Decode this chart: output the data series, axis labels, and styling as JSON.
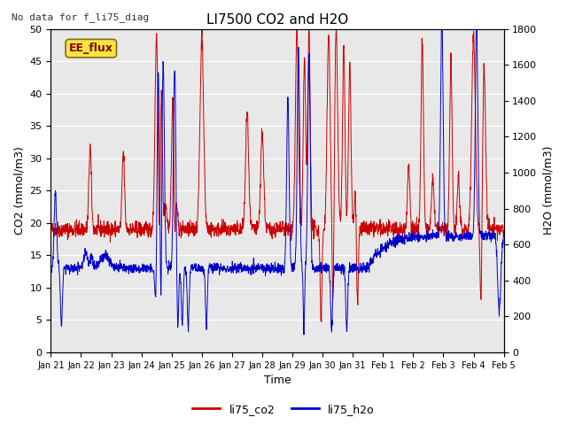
{
  "title": "LI7500 CO2 and H2O",
  "top_left_text": "No data for f_li75_diag",
  "box_label": "EE_flux",
  "xlabel": "Time",
  "ylabel_left": "CO2 (mmol/m3)",
  "ylabel_right": "H2O (mmol/m3)",
  "xlim": [
    0,
    15
  ],
  "ylim_left": [
    0,
    50
  ],
  "ylim_right": [
    0,
    1800
  ],
  "xtick_labels": [
    "Jan 21",
    "Jan 22",
    "Jan 23",
    "Jan 24",
    "Jan 25",
    "Jan 26",
    "Jan 27",
    "Jan 28",
    "Jan 29",
    "Jan 30",
    "Jan 31",
    "Feb 1",
    "Feb 2",
    "Feb 3",
    "Feb 4",
    "Feb 5"
  ],
  "xtick_positions": [
    0,
    1,
    2,
    3,
    4,
    5,
    6,
    7,
    8,
    9,
    10,
    11,
    12,
    13,
    14,
    15
  ],
  "ytick_left": [
    0,
    5,
    10,
    15,
    20,
    25,
    30,
    35,
    40,
    45,
    50
  ],
  "ytick_right": [
    0,
    200,
    400,
    600,
    800,
    1000,
    1200,
    1400,
    1600,
    1800
  ],
  "color_co2": "#cc0000",
  "color_h2o": "#0000cc",
  "bg_color": "#e8e8e8",
  "grid_color": "#ffffff",
  "legend_co2": "li75_co2",
  "legend_h2o": "li75_h2o",
  "h2o_scale": 36,
  "figwidth": 6.4,
  "figheight": 4.8,
  "dpi": 100
}
